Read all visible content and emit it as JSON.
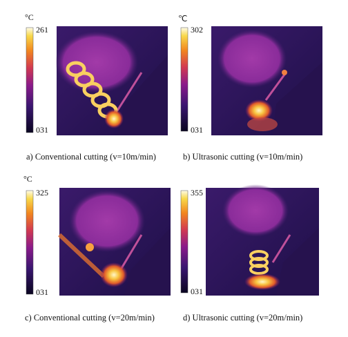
{
  "panels": [
    {
      "unit": "°C",
      "max": "261",
      "min": "031",
      "caption": "a) Conventional cutting (v=10m/min)"
    },
    {
      "unit": "℃",
      "max": "302",
      "min": "031",
      "caption": "b) Ultrasonic cutting (v=10m/min)"
    },
    {
      "unit": "°C",
      "max": "325",
      "min": "031",
      "caption": "c)  Conventional cutting (v=20m/min)"
    },
    {
      "max": "355",
      "min": "031",
      "caption": "d) Ultrasonic cutting (v=20m/min)"
    }
  ]
}
